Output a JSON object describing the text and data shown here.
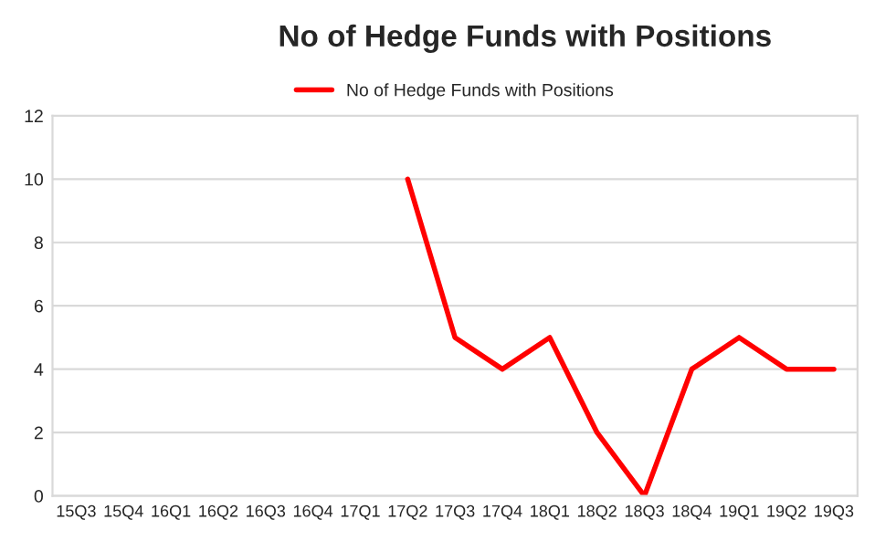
{
  "chart_data": {
    "type": "line",
    "title": "No of Hedge Funds with Positions",
    "categories": [
      "15Q3",
      "15Q4",
      "16Q1",
      "16Q2",
      "16Q3",
      "16Q4",
      "17Q1",
      "17Q2",
      "17Q3",
      "17Q4",
      "18Q1",
      "18Q2",
      "18Q3",
      "18Q4",
      "19Q1",
      "19Q2",
      "19Q3"
    ],
    "series": [
      {
        "name": "No of Hedge Funds with Positions",
        "color": "#ff0000",
        "values": [
          null,
          null,
          null,
          null,
          null,
          null,
          null,
          10,
          5,
          4,
          5,
          2,
          0,
          4,
          5,
          4,
          4
        ]
      }
    ],
    "ylim": [
      0,
      12
    ],
    "yticks": [
      0,
      2,
      4,
      6,
      8,
      10,
      12
    ],
    "grid": "y",
    "legend": "top",
    "marker": "none",
    "line_style": "solid"
  }
}
